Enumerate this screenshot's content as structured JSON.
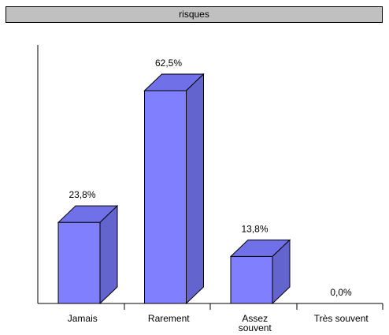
{
  "chart_data": {
    "type": "bar",
    "title": "risques",
    "categories": [
      "Jamais",
      "Rarement",
      "Assez souvent",
      "Très souvent"
    ],
    "category_lines": [
      [
        "Jamais"
      ],
      [
        "Rarement"
      ],
      [
        "Assez",
        "souvent"
      ],
      [
        "Très souvent"
      ]
    ],
    "values": [
      23.8,
      62.5,
      13.8,
      0.0
    ],
    "value_labels": [
      "23,8%",
      "62,5%",
      "13,8%",
      "0,0%"
    ],
    "ylim": [
      0,
      100
    ],
    "bar_style": "3d",
    "grid": false,
    "legend": "none"
  },
  "colors": {
    "bar_front": "#8080ff",
    "bar_top": "#7070e8",
    "bar_side": "#6464cf",
    "outline": "#000000",
    "title_bg": "#c0c0c0"
  }
}
